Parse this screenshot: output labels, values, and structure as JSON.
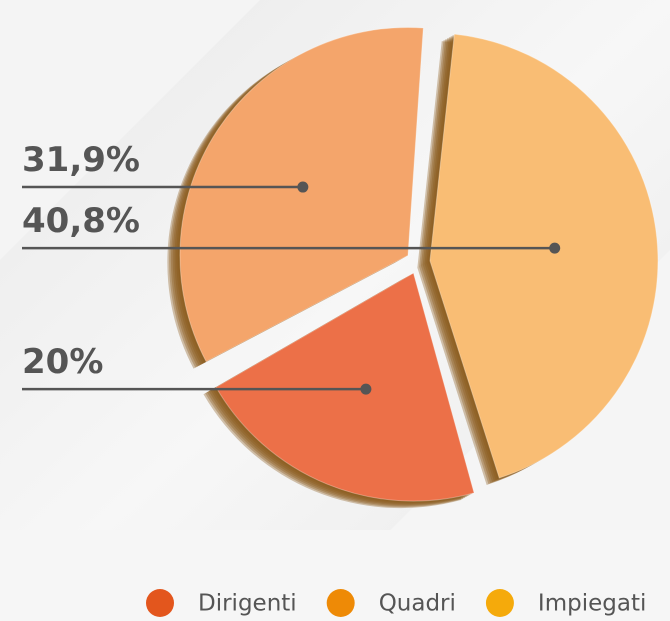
{
  "chart_data": {
    "type": "pie",
    "categories": [
      "Dirigenti",
      "Quadri",
      "Impiegati"
    ],
    "values": [
      20,
      31.9,
      40.8
    ],
    "value_labels": [
      "20%",
      "31,9%",
      "40,8%"
    ],
    "colors": [
      "#ec7048",
      "#f4a56b",
      "#f9bd74"
    ],
    "legend_colors": [
      "#e3561d",
      "#ee8a06",
      "#f5aa0b"
    ],
    "legend": "bottom"
  }
}
